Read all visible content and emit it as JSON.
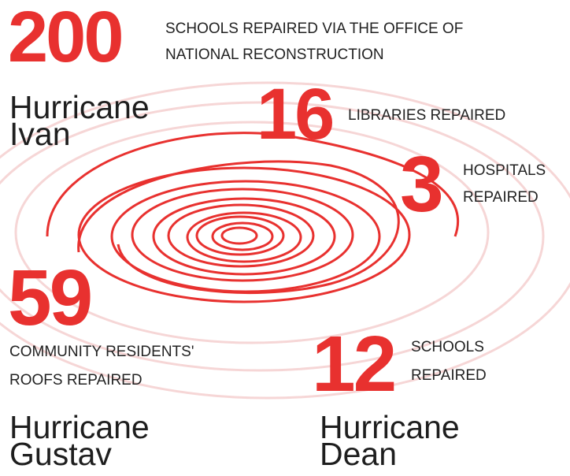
{
  "stats": [
    {
      "number": 200,
      "label": [
        "SCHOOLS REPAIRED VIA THE OFFICE OF",
        "NATIONAL RECONSTRUCTION"
      ]
    },
    {
      "number": 16,
      "label": [
        "LIBRARIES REPAIRED"
      ]
    },
    {
      "number": 3,
      "label": [
        "HOSPITALS",
        "REPAIRED"
      ]
    },
    {
      "number": 59,
      "label": [
        "COMMUNITY RESIDENTS'",
        "ROOFS REPAIRED"
      ]
    },
    {
      "number": 12,
      "label": [
        "SCHOOLS",
        "REPAIRED"
      ]
    }
  ],
  "hurricanes": [
    [
      "Hurricane",
      "Ivan"
    ],
    [
      "Hurricane",
      "Gustav"
    ],
    [
      "Hurricane",
      "Dean"
    ]
  ]
}
